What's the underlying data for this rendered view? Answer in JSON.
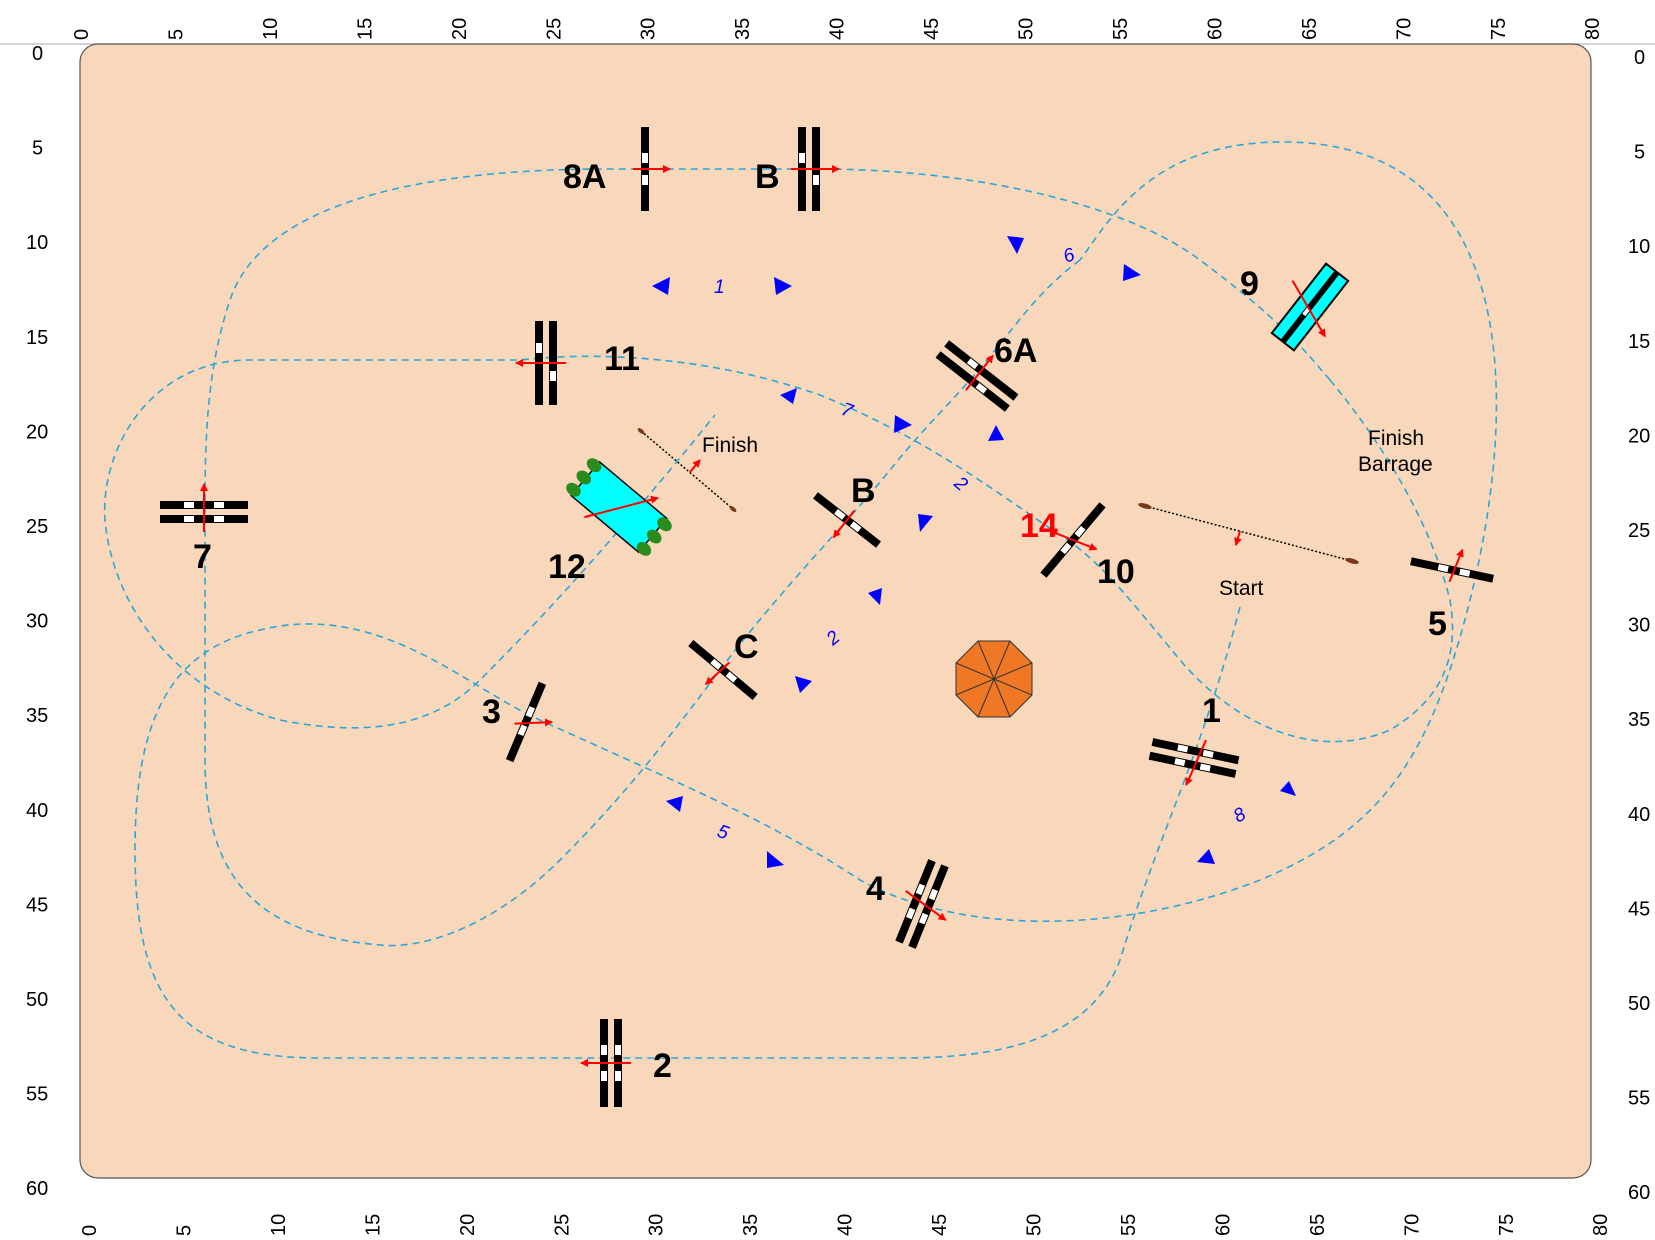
{
  "arena": {
    "fill": "#f8d7bb",
    "route_color": "#2aa7d8",
    "jump_color": "#000000",
    "arrow_color": "#ff0000",
    "marker_color": "#0000ff",
    "water_color": "#00ffff"
  },
  "scale": {
    "x_ticks": [
      "0",
      "5",
      "10",
      "15",
      "20",
      "25",
      "30",
      "35",
      "40",
      "45",
      "50",
      "55",
      "60",
      "65",
      "70",
      "75",
      "80"
    ],
    "y_ticks": [
      "0",
      "5",
      "10",
      "15",
      "20",
      "25",
      "30",
      "35",
      "40",
      "45",
      "50",
      "55",
      "60"
    ]
  },
  "jumps": [
    {
      "id": "j8a",
      "label": "8A",
      "type": "vertical",
      "color": "#000000"
    },
    {
      "id": "j8b",
      "label": "B",
      "type": "oxer",
      "color": "#000000"
    },
    {
      "id": "j9",
      "label": "9",
      "type": "water",
      "color": "#00ffff"
    },
    {
      "id": "j11",
      "label": "11",
      "type": "oxer",
      "color": "#000000"
    },
    {
      "id": "j6a",
      "label": "6A",
      "type": "oxer",
      "color": "#000000"
    },
    {
      "id": "j6b",
      "label": "B",
      "type": "vertical",
      "color": "#000000"
    },
    {
      "id": "j7",
      "label": "7",
      "type": "oxer",
      "color": "#000000"
    },
    {
      "id": "j12",
      "label": "12",
      "type": "water",
      "color": "#00ffff"
    },
    {
      "id": "j14",
      "label": "14",
      "type": "vertical",
      "color": "#ff0000"
    },
    {
      "id": "j10",
      "label": "10",
      "type": "vertical",
      "color": "#000000"
    },
    {
      "id": "j5",
      "label": "5",
      "type": "vertical",
      "color": "#000000"
    },
    {
      "id": "j6c",
      "label": "C",
      "type": "vertical",
      "color": "#000000"
    },
    {
      "id": "j3",
      "label": "3",
      "type": "vertical",
      "color": "#000000"
    },
    {
      "id": "j1",
      "label": "1",
      "type": "oxer",
      "color": "#000000"
    },
    {
      "id": "j4",
      "label": "4",
      "type": "oxer",
      "color": "#000000"
    },
    {
      "id": "j2",
      "label": "2",
      "type": "oxer",
      "color": "#000000"
    }
  ],
  "annotations": {
    "finish": "Finish",
    "finish_barrage_line1": "Finish",
    "finish_barrage_line2": "Barrage",
    "start": "Start"
  },
  "sequence_markers": [
    "1",
    "6",
    "7",
    "2",
    "2",
    "5",
    "8"
  ]
}
